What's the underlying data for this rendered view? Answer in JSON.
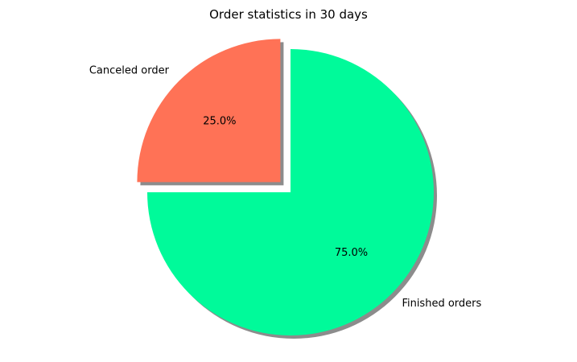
{
  "chart_data": {
    "type": "pie",
    "title": "Order statistics in 30 days",
    "slices": [
      {
        "label": "Canceled order",
        "value": 25.0,
        "percent_label": "25.0%",
        "color": "#FF7256",
        "exploded": true
      },
      {
        "label": "Finished orders",
        "value": 75.0,
        "percent_label": "75.0%",
        "color": "#00FA9A",
        "exploded": false
      }
    ],
    "shadow": true,
    "legend": "none"
  }
}
